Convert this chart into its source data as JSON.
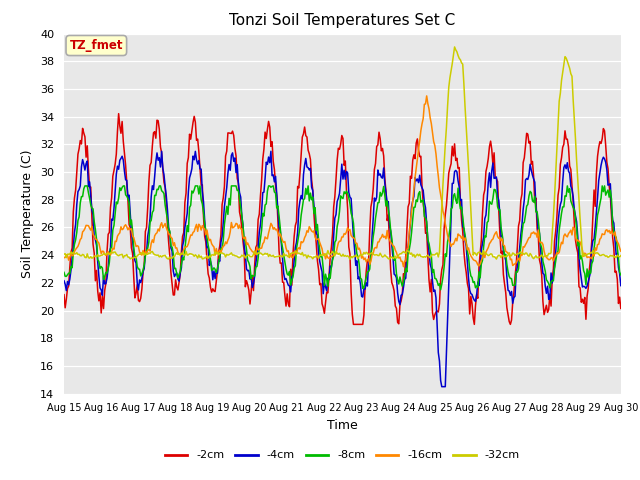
{
  "title": "Tonzi Soil Temperatures Set C",
  "xlabel": "Time",
  "ylabel": "Soil Temperature (C)",
  "ylim": [
    14,
    40
  ],
  "yticks": [
    14,
    16,
    18,
    20,
    22,
    24,
    26,
    28,
    30,
    32,
    34,
    36,
    38,
    40
  ],
  "xlabels": [
    "Aug 15",
    "Aug 16",
    "Aug 17",
    "Aug 18",
    "Aug 19",
    "Aug 20",
    "Aug 21",
    "Aug 22",
    "Aug 23",
    "Aug 24",
    "Aug 25",
    "Aug 26",
    "Aug 27",
    "Aug 28",
    "Aug 29",
    "Aug 30"
  ],
  "annotation_text": "TZ_fmet",
  "annotation_color": "#cc0000",
  "annotation_bg": "#ffffcc",
  "annotation_edge": "#aaaaaa",
  "colors": {
    "-2cm": "#dd0000",
    "-4cm": "#0000cc",
    "-8cm": "#00bb00",
    "-16cm": "#ff8800",
    "-32cm": "#cccc00"
  },
  "legend_labels": [
    "-2cm",
    "-4cm",
    "-8cm",
    "-16cm",
    "-32cm"
  ],
  "fig_bg": "#ffffff",
  "plot_bg": "#e8e8e8",
  "grid_color": "#ffffff",
  "n_points": 480
}
